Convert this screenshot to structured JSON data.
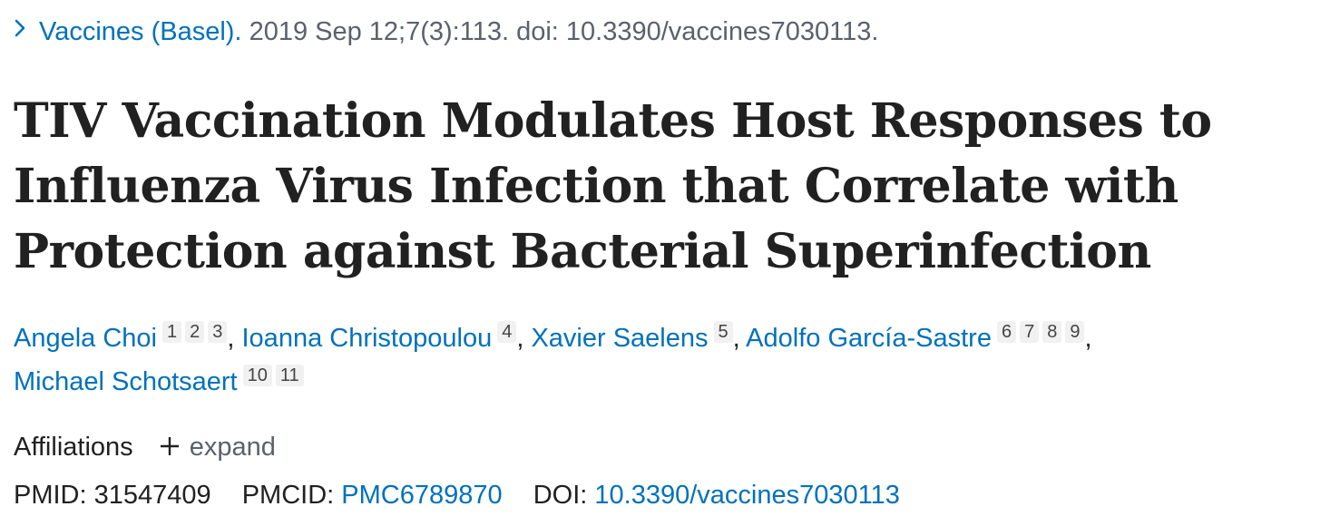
{
  "citation": {
    "journal": "Vaccines (Basel).",
    "details": "2019 Sep 12;7(3):113. doi: 10.3390/vaccines7030113."
  },
  "title": {
    "line1": "TIV Vaccination Modulates Host Responses to",
    "line2": "Influenza Virus Infection that Correlate with",
    "line3": "Protection against Bacterial Superinfection"
  },
  "authors": [
    {
      "name": "Angela Choi",
      "affiliations": [
        "1",
        "2",
        "3"
      ]
    },
    {
      "name": "Ioanna Christopoulou",
      "affiliations": [
        "4"
      ]
    },
    {
      "name": "Xavier Saelens",
      "affiliations": [
        "5"
      ]
    },
    {
      "name": "Adolfo García-Sastre",
      "affiliations": [
        "6",
        "7",
        "8",
        "9"
      ]
    },
    {
      "name": "Michael Schotsaert",
      "affiliations": [
        "10",
        "11"
      ]
    }
  ],
  "affiliations_section": {
    "label": "Affiliations",
    "toggle_label": "expand"
  },
  "identifiers": {
    "pmid_label": "PMID:",
    "pmid": "31547409",
    "pmcid_label": "PMCID:",
    "pmcid": "PMC6789870",
    "doi_label": "DOI:",
    "doi": "10.3390/vaccines7030113"
  },
  "colors": {
    "link": "#0071bc",
    "text": "#212121",
    "muted": "#5b616b",
    "badge_bg": "#f1f1f1"
  },
  "icons": {
    "citation_toggle": "chevron-right-icon",
    "expand_toggle": "plus-icon"
  }
}
